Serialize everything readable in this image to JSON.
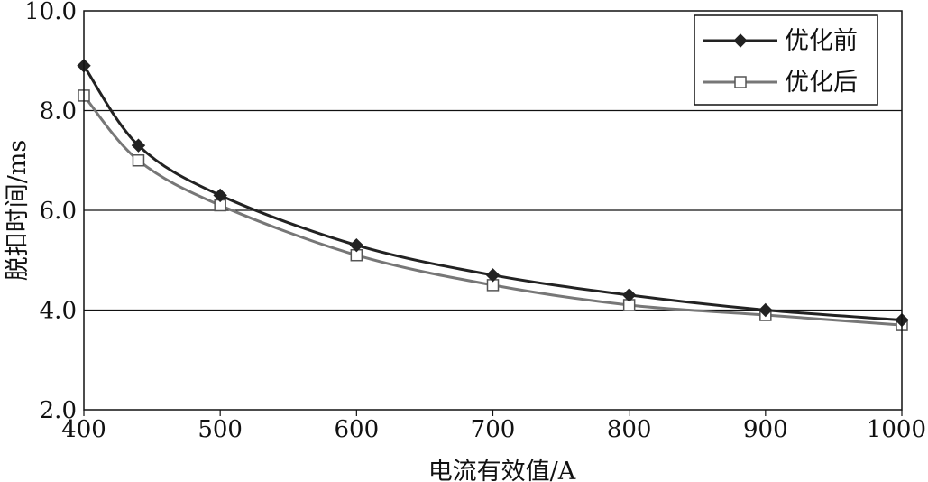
{
  "chart_data": {
    "type": "line",
    "xlabel": "电流有效值/A",
    "ylabel": "脱扣时间/ms",
    "xlim": [
      400,
      1000
    ],
    "ylim": [
      2.0,
      10.0
    ],
    "xticks": [
      "400",
      "500",
      "600",
      "700",
      "800",
      "900",
      "1000"
    ],
    "yticks": [
      "2.0",
      "4.0",
      "6.0",
      "8.0",
      "10.0"
    ],
    "grid": "horizontal",
    "legend_position": "top-right",
    "series": [
      {
        "name": "优化前",
        "color": "#222222",
        "marker": "diamond-filled",
        "x": [
          400,
          440,
          500,
          600,
          700,
          800,
          900,
          1000
        ],
        "y": [
          8.9,
          7.3,
          6.3,
          5.3,
          4.7,
          4.3,
          4.0,
          3.8
        ]
      },
      {
        "name": "优化后",
        "color": "#777777",
        "marker": "square-open",
        "x": [
          400,
          440,
          500,
          600,
          700,
          800,
          900,
          1000
        ],
        "y": [
          8.3,
          7.0,
          6.1,
          5.1,
          4.5,
          4.1,
          3.9,
          3.7
        ]
      }
    ]
  }
}
